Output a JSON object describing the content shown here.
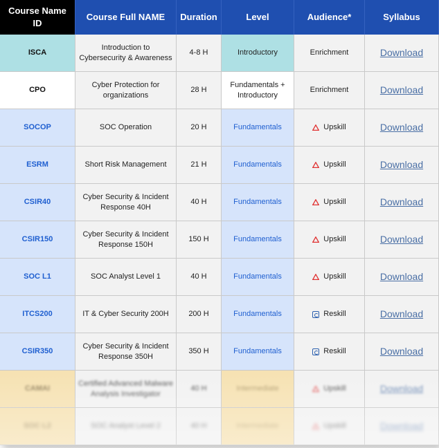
{
  "headers": [
    "Course Name ID",
    "Course Full NAME",
    "Duration",
    "Level",
    "Audience*",
    "Syllabus"
  ],
  "colors": {
    "header_blue": "#1f4fb0",
    "header_black": "#000000",
    "id_blue_bg": "#d6e4fb",
    "id_cyan_bg": "#aee0e4",
    "id_tan_bg": "#f6e2b3",
    "link": "#4a6fa5",
    "warning_red": "#e03030"
  },
  "rows": [
    {
      "id": "ISCA",
      "name": "Introduction to Cybersecurity & Awareness",
      "duration": "4-8 H",
      "level": "Introductory",
      "audience": "Enrichment",
      "audience_icon": "",
      "syllabus": "Download"
    },
    {
      "id": "CPO",
      "name": "Cyber Protection for organizations",
      "duration": "28 H",
      "level": "Fundamentals + Introductory",
      "audience": "Enrichment",
      "audience_icon": "",
      "syllabus": "Download"
    },
    {
      "id": "SOCOP",
      "name": "SOC Operation",
      "duration": "20 H",
      "level": "Fundamentals",
      "audience": "Upskill",
      "audience_icon": "warning-triangle-icon",
      "syllabus": "Download"
    },
    {
      "id": "ESRM",
      "name": "Short Risk Management",
      "duration": "21 H",
      "level": "Fundamentals",
      "audience": "Upskill",
      "audience_icon": "warning-triangle-icon",
      "syllabus": "Download"
    },
    {
      "id": "CSIR40",
      "name": "Cyber Security & Incident Response 40H",
      "duration": "40 H",
      "level": "Fundamentals",
      "audience": "Upskill",
      "audience_icon": "warning-triangle-icon",
      "syllabus": "Download"
    },
    {
      "id": "CSIR150",
      "name": "Cyber Security & Incident Response 150H",
      "duration": "150 H",
      "level": "Fundamentals",
      "audience": "Upskill",
      "audience_icon": "warning-triangle-icon",
      "syllabus": "Download"
    },
    {
      "id": "SOC L1",
      "name": "SOC Analyst Level 1",
      "duration": "40 H",
      "level": "Fundamentals",
      "audience": "Upskill",
      "audience_icon": "warning-triangle-icon",
      "syllabus": "Download"
    },
    {
      "id": "ITCS200",
      "name": "IT & Cyber Security 200H",
      "duration": "200 H",
      "level": "Fundamentals",
      "audience": "Reskill",
      "audience_icon": "reskill-icon",
      "syllabus": "Download"
    },
    {
      "id": "CSIR350",
      "name": "Cyber Security & Incident Response 350H",
      "duration": "350 H",
      "level": "Fundamentals",
      "audience": "Reskill",
      "audience_icon": "reskill-icon",
      "syllabus": "Download"
    },
    {
      "id": "CAMAI",
      "name": "Certified Advanced Malware Analysis Investigator",
      "duration": "40 H",
      "level": "Intermediate",
      "audience": "Upskill",
      "audience_icon": "warning-triangle-icon",
      "syllabus": "Download"
    },
    {
      "id": "SOC L2",
      "name": "SOC Analyst Level 2",
      "duration": "40 H",
      "level": "Intermediate",
      "audience": "Upskill",
      "audience_icon": "warning-triangle-icon",
      "syllabus": "Download"
    }
  ]
}
